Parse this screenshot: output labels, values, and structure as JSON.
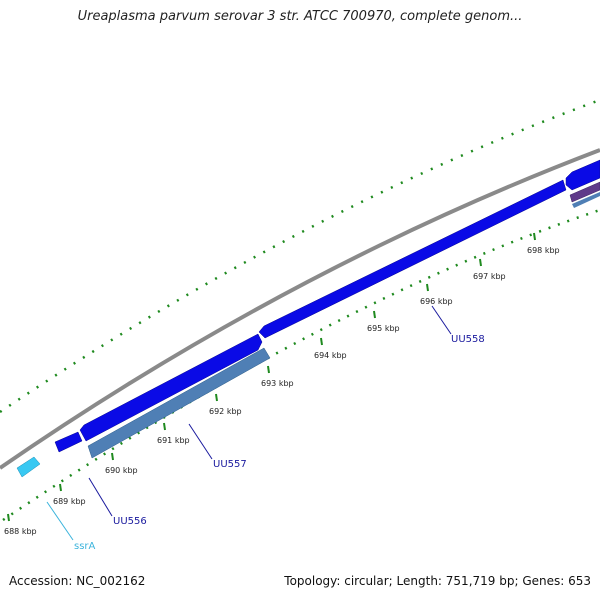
{
  "header": {
    "title": "Ureaplasma parvum serovar 3 str. ATCC 700970, complete genom..."
  },
  "footer": {
    "accession": "Accession: NC_002162",
    "summary": "Topology: circular; Length: 751,719 bp; Genes: 653"
  },
  "ticks": [
    "688 kbp",
    "689 kbp",
    "690 kbp",
    "691 kbp",
    "692 kbp",
    "693 kbp",
    "694 kbp",
    "695 kbp",
    "696 kbp",
    "697 kbp",
    "698 kbp"
  ],
  "gene_labels": {
    "ssrA": "ssrA",
    "uu556": "UU556",
    "uu557": "UU557",
    "uu558": "UU558"
  },
  "colors": {
    "cds": "#0a0ae6",
    "gene": "#4f7fb5",
    "tmrna": "#38c8f2",
    "backbone": "#8a8a8a",
    "ticks": "#1f8a1f",
    "label_dark": "#1a1a9e",
    "label_light": "#3cb4dc"
  }
}
